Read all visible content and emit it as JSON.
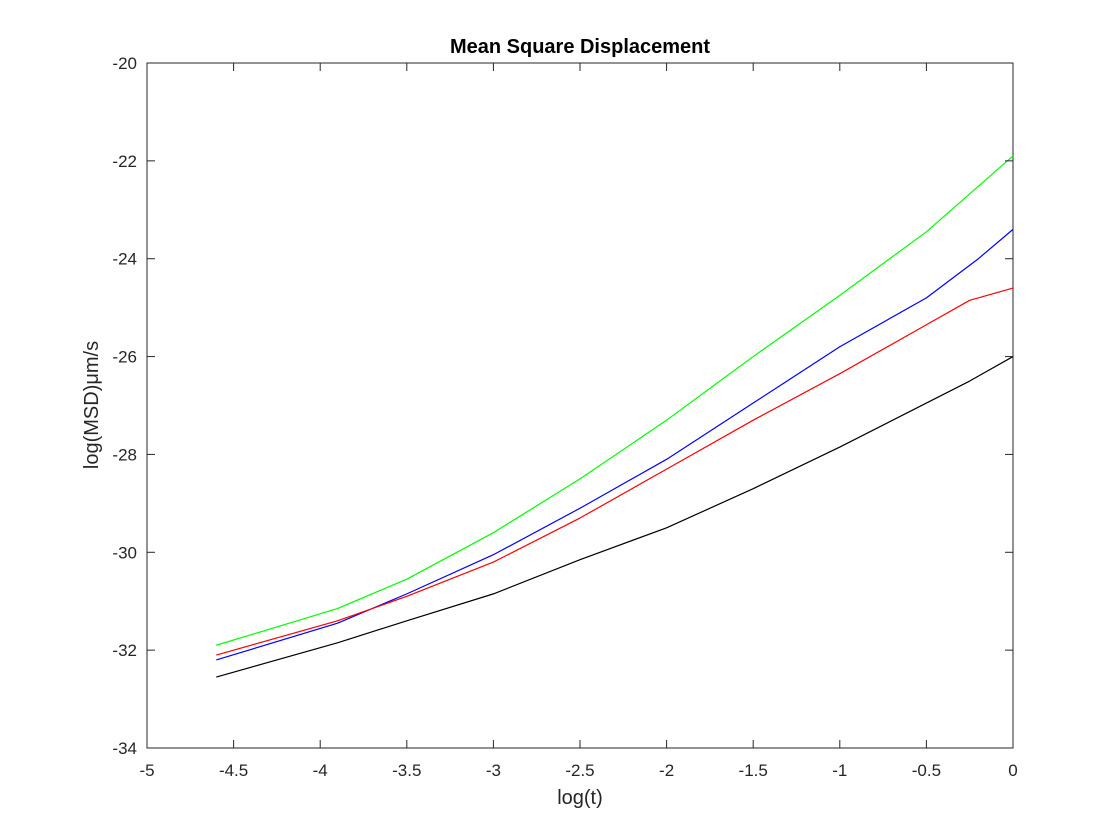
{
  "chart_data": {
    "type": "line",
    "title": "Mean Square Displacement",
    "xlabel": "log(t)",
    "ylabel": "log(MSD)μm/s",
    "xlim": [
      -5,
      0
    ],
    "ylim": [
      -34,
      -20
    ],
    "xticks": [
      -5,
      -4.5,
      -4,
      -3.5,
      -3,
      -2.5,
      -2,
      -1.5,
      -1,
      -0.5,
      0
    ],
    "yticks": [
      -34,
      -32,
      -30,
      -28,
      -26,
      -24,
      -22,
      -20
    ],
    "xtick_labels": [
      "-5",
      "-4.5",
      "-4",
      "-3.5",
      "-3",
      "-2.5",
      "-2",
      "-1.5",
      "-1",
      "-0.5",
      "0"
    ],
    "ytick_labels": [
      "-34",
      "-32",
      "-30",
      "-28",
      "-26",
      "-24",
      "-22",
      "-20"
    ],
    "grid": false,
    "box": true,
    "series": [
      {
        "color": "#00ff00",
        "x": [
          -4.6,
          -3.9,
          -3.5,
          -3.0,
          -2.5,
          -2.0,
          -1.5,
          -1.0,
          -0.5,
          0.0
        ],
        "y": [
          -31.9,
          -31.15,
          -30.55,
          -29.6,
          -28.5,
          -27.3,
          -26.0,
          -24.75,
          -23.45,
          -21.9
        ]
      },
      {
        "color": "#0000ff",
        "x": [
          -4.6,
          -3.9,
          -3.5,
          -3.0,
          -2.5,
          -2.0,
          -1.5,
          -1.0,
          -0.5,
          -0.2,
          0.0
        ],
        "y": [
          -32.2,
          -31.45,
          -30.85,
          -30.05,
          -29.1,
          -28.1,
          -26.95,
          -25.8,
          -24.8,
          -24.0,
          -23.4
        ]
      },
      {
        "color": "#ff0000",
        "x": [
          -4.6,
          -3.9,
          -3.5,
          -3.0,
          -2.5,
          -2.0,
          -1.5,
          -1.0,
          -0.5,
          -0.25,
          0.0
        ],
        "y": [
          -32.1,
          -31.4,
          -30.9,
          -30.2,
          -29.3,
          -28.3,
          -27.3,
          -26.35,
          -25.35,
          -24.85,
          -24.6
        ]
      },
      {
        "color": "#000000",
        "x": [
          -4.6,
          -3.9,
          -3.5,
          -3.0,
          -2.5,
          -2.0,
          -1.5,
          -1.0,
          -0.5,
          -0.25,
          0.0
        ],
        "y": [
          -32.55,
          -31.85,
          -31.4,
          -30.85,
          -30.15,
          -29.5,
          -28.7,
          -27.85,
          -26.95,
          -26.5,
          -26.0
        ]
      }
    ]
  }
}
